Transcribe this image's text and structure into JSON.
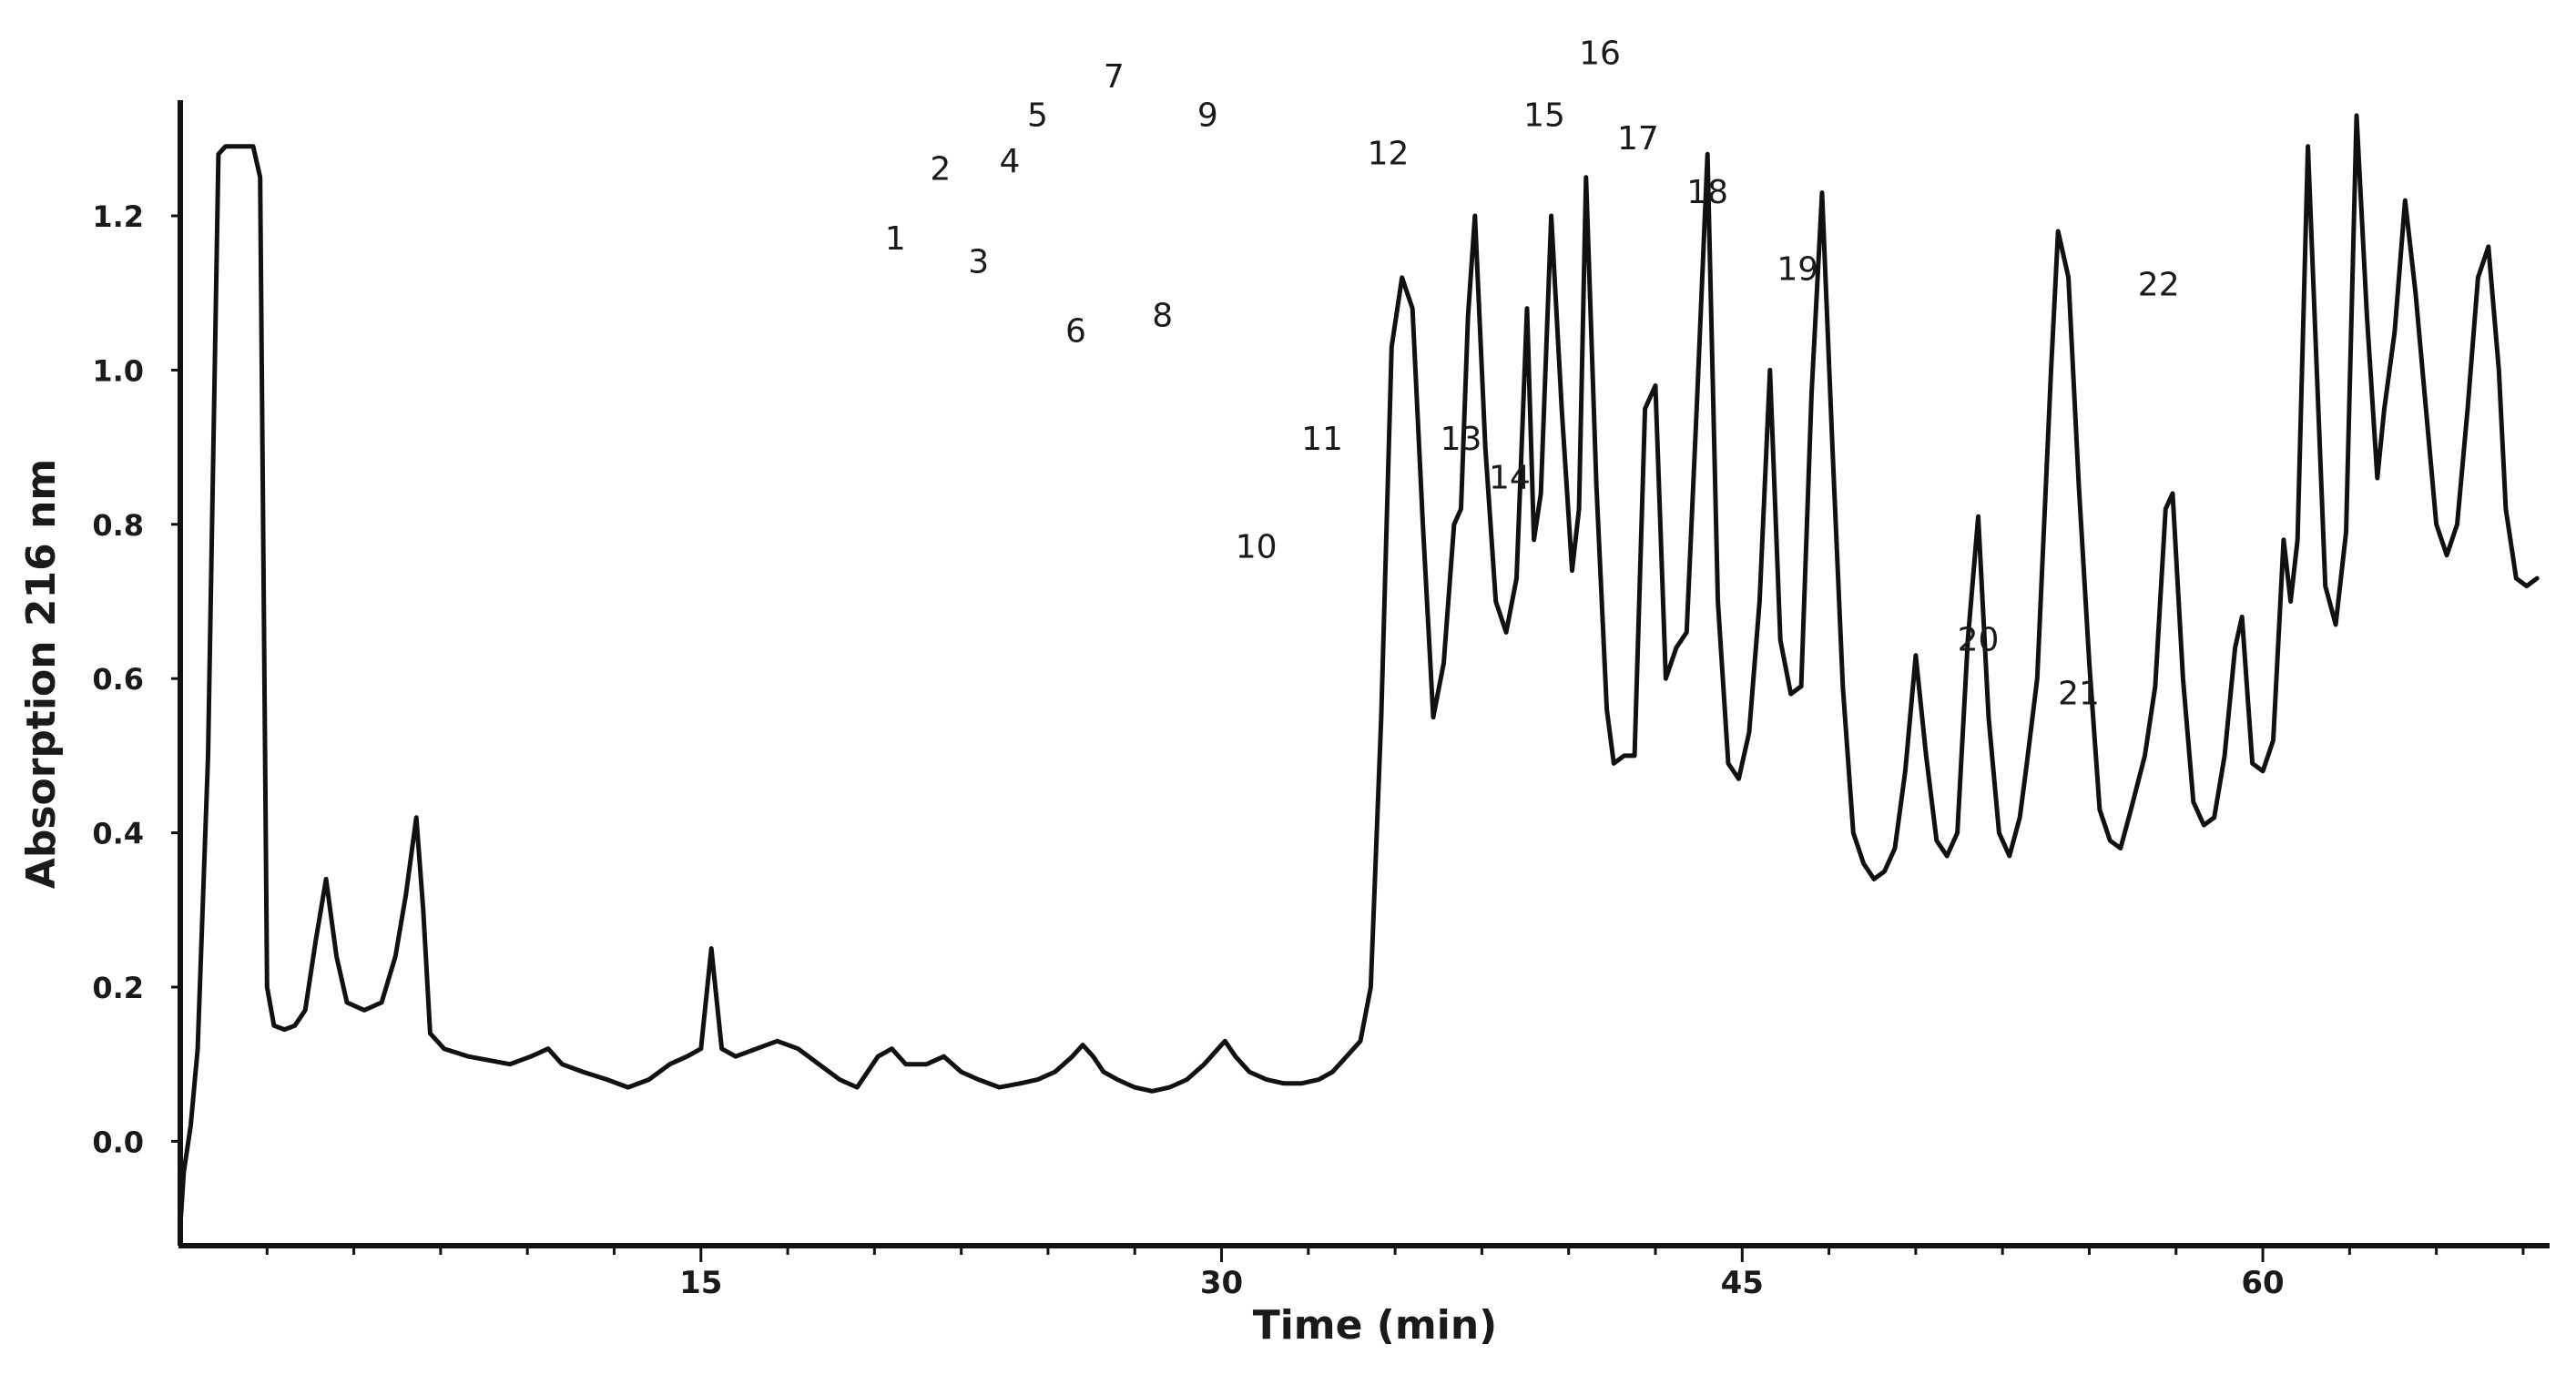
{
  "chart_data": {
    "type": "line",
    "title": "",
    "xlabel": "Time (min)",
    "ylabel": "Absorption 216 nm",
    "xlim": [
      0,
      68
    ],
    "ylim": [
      -0.12,
      1.35
    ],
    "x_ticks": [
      15,
      30,
      45,
      60
    ],
    "y_ticks": [
      0.0,
      0.2,
      0.4,
      0.6,
      0.8,
      1.0,
      1.2
    ],
    "grid": false,
    "legend": "none",
    "line_color": "#111111",
    "series": [
      {
        "points": [
          [
            0.0,
            -0.11
          ],
          [
            0.1,
            -0.04
          ],
          [
            0.3,
            0.02
          ],
          [
            0.5,
            0.12
          ],
          [
            0.8,
            0.5
          ],
          [
            1.1,
            1.28
          ],
          [
            1.3,
            1.29
          ],
          [
            1.6,
            1.29
          ],
          [
            1.9,
            1.29
          ],
          [
            2.1,
            1.29
          ],
          [
            2.3,
            1.25
          ],
          [
            2.5,
            0.2
          ],
          [
            2.7,
            0.15
          ],
          [
            3.0,
            0.145
          ],
          [
            3.3,
            0.15
          ],
          [
            3.6,
            0.17
          ],
          [
            3.9,
            0.26
          ],
          [
            4.2,
            0.34
          ],
          [
            4.5,
            0.24
          ],
          [
            4.8,
            0.18
          ],
          [
            5.3,
            0.17
          ],
          [
            5.8,
            0.18
          ],
          [
            6.2,
            0.24
          ],
          [
            6.5,
            0.32
          ],
          [
            6.8,
            0.42
          ],
          [
            7.0,
            0.3
          ],
          [
            7.2,
            0.14
          ],
          [
            7.6,
            0.12
          ],
          [
            8.3,
            0.11
          ],
          [
            8.9,
            0.105
          ],
          [
            9.5,
            0.1
          ],
          [
            10.1,
            0.11
          ],
          [
            10.6,
            0.12
          ],
          [
            11.0,
            0.1
          ],
          [
            11.6,
            0.09
          ],
          [
            12.3,
            0.08
          ],
          [
            12.9,
            0.07
          ],
          [
            13.5,
            0.08
          ],
          [
            14.1,
            0.1
          ],
          [
            14.6,
            0.11
          ],
          [
            15.0,
            0.12
          ],
          [
            15.3,
            0.25
          ],
          [
            15.6,
            0.12
          ],
          [
            16.0,
            0.11
          ],
          [
            16.6,
            0.12
          ],
          [
            17.2,
            0.13
          ],
          [
            17.8,
            0.12
          ],
          [
            18.4,
            0.1
          ],
          [
            19.0,
            0.08
          ],
          [
            19.5,
            0.07
          ],
          [
            20.1,
            0.11
          ],
          [
            20.5,
            0.12
          ],
          [
            20.9,
            0.1
          ],
          [
            21.5,
            0.1
          ],
          [
            22.0,
            0.11
          ],
          [
            22.5,
            0.09
          ],
          [
            23.0,
            0.08
          ],
          [
            23.6,
            0.07
          ],
          [
            24.2,
            0.075
          ],
          [
            24.7,
            0.08
          ],
          [
            25.2,
            0.09
          ],
          [
            25.7,
            0.11
          ],
          [
            26.0,
            0.125
          ],
          [
            26.3,
            0.11
          ],
          [
            26.6,
            0.09
          ],
          [
            27.0,
            0.08
          ],
          [
            27.5,
            0.07
          ],
          [
            28.0,
            0.065
          ],
          [
            28.5,
            0.07
          ],
          [
            29.0,
            0.08
          ],
          [
            29.5,
            0.1
          ],
          [
            29.9,
            0.12
          ],
          [
            30.1,
            0.13
          ],
          [
            30.4,
            0.11
          ],
          [
            30.8,
            0.09
          ],
          [
            31.3,
            0.08
          ],
          [
            31.8,
            0.075
          ],
          [
            32.3,
            0.075
          ],
          [
            32.8,
            0.08
          ],
          [
            33.2,
            0.09
          ],
          [
            33.6,
            0.11
          ],
          [
            34.0,
            0.13
          ],
          [
            34.3,
            0.2
          ],
          [
            34.6,
            0.55
          ],
          [
            34.9,
            1.03
          ],
          [
            35.2,
            1.12
          ],
          [
            35.5,
            1.08
          ],
          [
            35.8,
            0.8
          ],
          [
            36.1,
            0.55
          ],
          [
            36.4,
            0.62
          ],
          [
            36.7,
            0.8
          ],
          [
            36.9,
            0.82
          ],
          [
            37.1,
            1.07
          ],
          [
            37.3,
            1.2
          ],
          [
            37.6,
            0.9
          ],
          [
            37.9,
            0.7
          ],
          [
            38.2,
            0.66
          ],
          [
            38.5,
            0.73
          ],
          [
            38.8,
            1.08
          ],
          [
            39.0,
            0.78
          ],
          [
            39.2,
            0.84
          ],
          [
            39.5,
            1.2
          ],
          [
            39.8,
            0.95
          ],
          [
            40.1,
            0.74
          ],
          [
            40.3,
            0.82
          ],
          [
            40.5,
            1.25
          ],
          [
            40.8,
            0.85
          ],
          [
            41.1,
            0.56
          ],
          [
            41.3,
            0.49
          ],
          [
            41.6,
            0.5
          ],
          [
            41.9,
            0.5
          ],
          [
            42.2,
            0.95
          ],
          [
            42.5,
            0.98
          ],
          [
            42.8,
            0.6
          ],
          [
            43.1,
            0.64
          ],
          [
            43.4,
            0.66
          ],
          [
            43.7,
            0.96
          ],
          [
            44.0,
            1.28
          ],
          [
            44.3,
            0.7
          ],
          [
            44.6,
            0.49
          ],
          [
            44.9,
            0.47
          ],
          [
            45.2,
            0.53
          ],
          [
            45.5,
            0.7
          ],
          [
            45.8,
            1.0
          ],
          [
            46.1,
            0.65
          ],
          [
            46.4,
            0.58
          ],
          [
            46.7,
            0.59
          ],
          [
            47.0,
            0.97
          ],
          [
            47.3,
            1.23
          ],
          [
            47.6,
            0.9
          ],
          [
            47.9,
            0.59
          ],
          [
            48.2,
            0.4
          ],
          [
            48.5,
            0.36
          ],
          [
            48.8,
            0.34
          ],
          [
            49.1,
            0.35
          ],
          [
            49.4,
            0.38
          ],
          [
            49.7,
            0.48
          ],
          [
            50.0,
            0.63
          ],
          [
            50.3,
            0.5
          ],
          [
            50.6,
            0.39
          ],
          [
            50.9,
            0.37
          ],
          [
            51.2,
            0.4
          ],
          [
            51.5,
            0.65
          ],
          [
            51.8,
            0.81
          ],
          [
            52.1,
            0.55
          ],
          [
            52.4,
            0.4
          ],
          [
            52.7,
            0.37
          ],
          [
            53.0,
            0.42
          ],
          [
            53.2,
            0.49
          ],
          [
            53.5,
            0.6
          ],
          [
            53.9,
            1.0
          ],
          [
            54.1,
            1.18
          ],
          [
            54.4,
            1.12
          ],
          [
            54.7,
            0.85
          ],
          [
            55.0,
            0.62
          ],
          [
            55.3,
            0.43
          ],
          [
            55.6,
            0.39
          ],
          [
            55.9,
            0.38
          ],
          [
            56.2,
            0.43
          ],
          [
            56.6,
            0.5
          ],
          [
            56.9,
            0.59
          ],
          [
            57.2,
            0.82
          ],
          [
            57.4,
            0.84
          ],
          [
            57.7,
            0.6
          ],
          [
            58.0,
            0.44
          ],
          [
            58.3,
            0.41
          ],
          [
            58.6,
            0.42
          ],
          [
            58.9,
            0.5
          ],
          [
            59.2,
            0.64
          ],
          [
            59.4,
            0.68
          ],
          [
            59.7,
            0.49
          ],
          [
            60.0,
            0.48
          ],
          [
            60.3,
            0.52
          ],
          [
            60.6,
            0.78
          ],
          [
            60.8,
            0.7
          ],
          [
            61.0,
            0.78
          ],
          [
            61.3,
            1.29
          ],
          [
            61.6,
            0.95
          ],
          [
            61.8,
            0.72
          ],
          [
            62.1,
            0.67
          ],
          [
            62.4,
            0.79
          ],
          [
            62.7,
            1.33
          ],
          [
            63.0,
            1.07
          ],
          [
            63.3,
            0.86
          ],
          [
            63.5,
            0.95
          ],
          [
            63.8,
            1.05
          ],
          [
            64.1,
            1.22
          ],
          [
            64.4,
            1.1
          ],
          [
            64.7,
            0.95
          ],
          [
            65.0,
            0.8
          ],
          [
            65.3,
            0.76
          ],
          [
            65.6,
            0.8
          ],
          [
            65.9,
            0.95
          ],
          [
            66.2,
            1.12
          ],
          [
            66.5,
            1.16
          ],
          [
            66.8,
            1.0
          ],
          [
            67.0,
            0.82
          ],
          [
            67.3,
            0.73
          ],
          [
            67.6,
            0.72
          ],
          [
            67.9,
            0.73
          ]
        ]
      }
    ],
    "peak_labels": [
      {
        "text": "1",
        "x": 20.6,
        "y": 1.14
      },
      {
        "text": "2",
        "x": 21.9,
        "y": 1.23
      },
      {
        "text": "3",
        "x": 23.0,
        "y": 1.11
      },
      {
        "text": "4",
        "x": 23.9,
        "y": 1.24
      },
      {
        "text": "5",
        "x": 24.7,
        "y": 1.3
      },
      {
        "text": "6",
        "x": 25.8,
        "y": 1.02
      },
      {
        "text": "7",
        "x": 26.9,
        "y": 1.35
      },
      {
        "text": "8",
        "x": 28.3,
        "y": 1.04
      },
      {
        "text": "9",
        "x": 29.6,
        "y": 1.3
      },
      {
        "text": "10",
        "x": 31.0,
        "y": 0.74
      },
      {
        "text": "11",
        "x": 32.9,
        "y": 0.88
      },
      {
        "text": "12",
        "x": 34.8,
        "y": 1.25
      },
      {
        "text": "13",
        "x": 36.9,
        "y": 0.88
      },
      {
        "text": "14",
        "x": 38.3,
        "y": 0.83
      },
      {
        "text": "15",
        "x": 39.3,
        "y": 1.3
      },
      {
        "text": "16",
        "x": 40.9,
        "y": 1.38
      },
      {
        "text": "17",
        "x": 42.0,
        "y": 1.27
      },
      {
        "text": "18",
        "x": 44.0,
        "y": 1.2
      },
      {
        "text": "19",
        "x": 46.6,
        "y": 1.1
      },
      {
        "text": "20",
        "x": 51.8,
        "y": 0.62
      },
      {
        "text": "21",
        "x": 54.7,
        "y": 0.55
      },
      {
        "text": "22",
        "x": 57.0,
        "y": 1.08
      }
    ]
  }
}
